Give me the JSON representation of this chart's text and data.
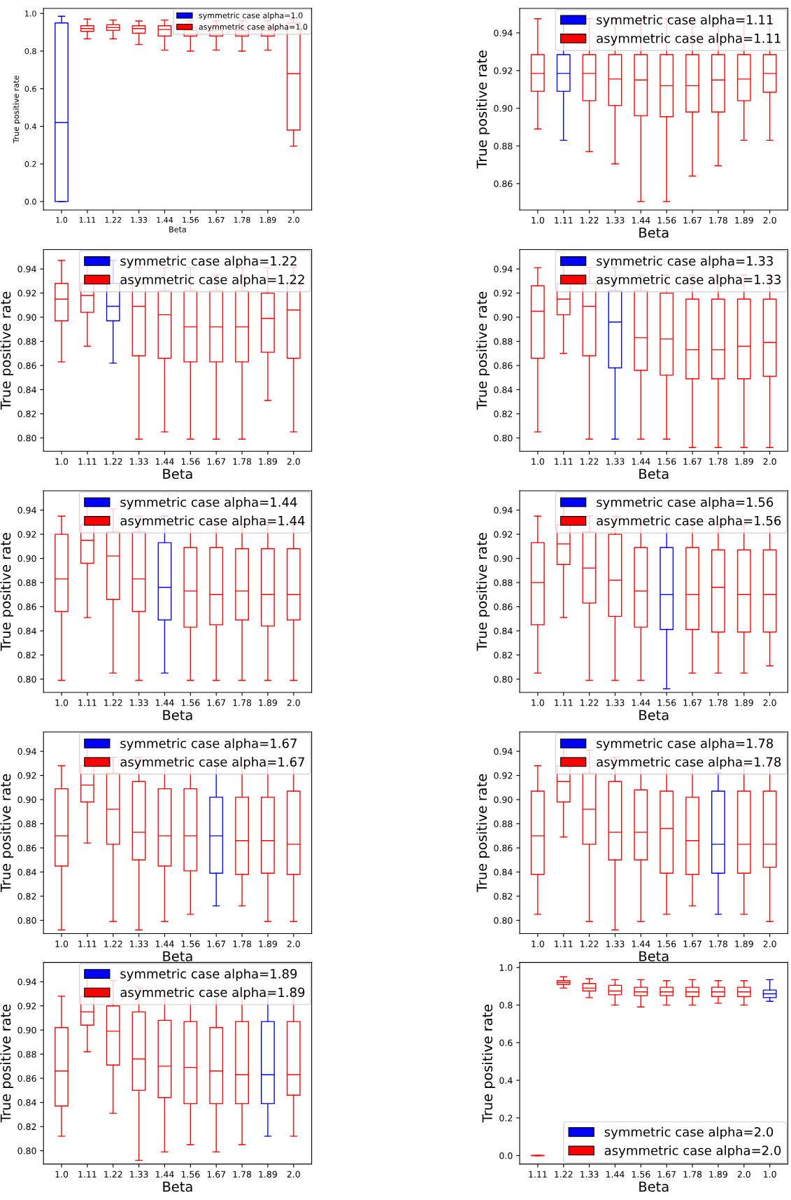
{
  "chart_data": [
    {
      "type": "box",
      "categories": [
        "1.0",
        "1.11",
        "1.22",
        "1.33",
        "1.44",
        "1.56",
        "1.67",
        "1.78",
        "1.89",
        "2.0"
      ],
      "xlabel": "Beta",
      "ylabel": "True positive rate",
      "ylim": [
        -0.045,
        1.027
      ],
      "yticks": [
        {
          "value": 0.0,
          "label": "0.0"
        },
        {
          "value": 0.2,
          "label": "0.2"
        },
        {
          "value": 0.4,
          "label": "0.4"
        },
        {
          "value": 0.6,
          "label": "0.6"
        },
        {
          "value": 0.8,
          "label": "0.8"
        },
        {
          "value": 1.0,
          "label": "1.0"
        }
      ],
      "legend": "top right",
      "series": [
        {
          "name": "symmetric case alpha=1.0",
          "color": "#0000ff",
          "boxes": [
            {
              "low": 0.0,
              "q1": 0.0,
              "median": 0.42,
              "q3": 0.95,
              "high": 0.985
            },
            null,
            null,
            null,
            null,
            null,
            null,
            null,
            null,
            null
          ]
        },
        {
          "name": "asymmetric case alpha=1.0",
          "color": "#ff0000",
          "boxes": [
            null,
            {
              "low": 0.865,
              "q1": 0.905,
              "median": 0.92,
              "q3": 0.935,
              "high": 0.97
            },
            {
              "low": 0.865,
              "q1": 0.91,
              "median": 0.925,
              "q3": 0.94,
              "high": 0.965
            },
            {
              "low": 0.835,
              "q1": 0.895,
              "median": 0.92,
              "q3": 0.935,
              "high": 0.96
            },
            {
              "low": 0.805,
              "q1": 0.88,
              "median": 0.915,
              "q3": 0.935,
              "high": 0.965
            },
            {
              "low": 0.8,
              "q1": 0.88,
              "median": 0.91,
              "q3": 0.925,
              "high": 0.96
            },
            {
              "low": 0.805,
              "q1": 0.88,
              "median": 0.91,
              "q3": 0.925,
              "high": 0.96
            },
            {
              "low": 0.8,
              "q1": 0.88,
              "median": 0.91,
              "q3": 0.925,
              "high": 0.96
            },
            {
              "low": 0.805,
              "q1": 0.88,
              "median": 0.91,
              "q3": 0.925,
              "high": 0.96
            },
            {
              "low": 0.295,
              "q1": 0.38,
              "median": 0.68,
              "q3": 0.95,
              "high": 0.97
            }
          ]
        }
      ]
    },
    {
      "type": "box",
      "categories": [
        "1.0",
        "1.11",
        "1.22",
        "1.33",
        "1.44",
        "1.56",
        "1.67",
        "1.78",
        "1.89",
        "2.0"
      ],
      "xlabel": "Beta",
      "ylabel": "True positive rate",
      "ylim": [
        0.846,
        0.953
      ],
      "yticks": [
        {
          "value": 0.86,
          "label": "0.86"
        },
        {
          "value": 0.88,
          "label": "0.88"
        },
        {
          "value": 0.9,
          "label": "0.90"
        },
        {
          "value": 0.92,
          "label": "0.92"
        },
        {
          "value": 0.94,
          "label": "0.94"
        }
      ],
      "legend": "top right",
      "series": [
        {
          "name": "symmetric case alpha=1.11",
          "color": "#0000ff",
          "boxes": [
            null,
            {
              "low": 0.883,
              "q1": 0.909,
              "median": 0.9185,
              "q3": 0.9285,
              "high": 0.9475
            },
            null,
            null,
            null,
            null,
            null,
            null,
            null,
            null
          ]
        },
        {
          "name": "asymmetric case alpha=1.11",
          "color": "#ff0000",
          "boxes": [
            {
              "low": 0.889,
              "q1": 0.909,
              "median": 0.9185,
              "q3": 0.9285,
              "high": 0.9475
            },
            null,
            {
              "low": 0.877,
              "q1": 0.904,
              "median": 0.9185,
              "q3": 0.9285,
              "high": 0.9475
            },
            {
              "low": 0.8705,
              "q1": 0.9015,
              "median": 0.9155,
              "q3": 0.9285,
              "high": 0.9475
            },
            {
              "low": 0.8505,
              "q1": 0.896,
              "median": 0.915,
              "q3": 0.9285,
              "high": 0.9475
            },
            {
              "low": 0.8505,
              "q1": 0.8955,
              "median": 0.912,
              "q3": 0.9285,
              "high": 0.9475
            },
            {
              "low": 0.864,
              "q1": 0.898,
              "median": 0.912,
              "q3": 0.9285,
              "high": 0.9475
            },
            {
              "low": 0.8695,
              "q1": 0.898,
              "median": 0.915,
              "q3": 0.9285,
              "high": 0.9475
            },
            {
              "low": 0.883,
              "q1": 0.904,
              "median": 0.9155,
              "q3": 0.9285,
              "high": 0.9475
            },
            {
              "low": 0.883,
              "q1": 0.9085,
              "median": 0.9185,
              "q3": 0.9285,
              "high": 0.9475
            }
          ]
        }
      ]
    },
    {
      "type": "box",
      "categories": [
        "1.0",
        "1.11",
        "1.22",
        "1.33",
        "1.44",
        "1.56",
        "1.67",
        "1.78",
        "1.89",
        "2.0"
      ],
      "xlabel": "Beta",
      "ylabel": "True positive rate",
      "ylim": [
        0.789,
        0.956
      ],
      "yticks": [
        {
          "value": 0.8,
          "label": "0.80"
        },
        {
          "value": 0.82,
          "label": "0.82"
        },
        {
          "value": 0.84,
          "label": "0.84"
        },
        {
          "value": 0.86,
          "label": "0.86"
        },
        {
          "value": 0.88,
          "label": "0.88"
        },
        {
          "value": 0.9,
          "label": "0.90"
        },
        {
          "value": 0.92,
          "label": "0.92"
        },
        {
          "value": 0.94,
          "label": "0.94"
        }
      ],
      "legend": "top right",
      "series": [
        {
          "name": "symmetric case alpha=1.22",
          "color": "#0000ff",
          "boxes": [
            null,
            null,
            {
              "low": 0.862,
              "q1": 0.897,
              "median": 0.909,
              "q3": 0.928,
              "high": 0.947
            },
            null,
            null,
            null,
            null,
            null,
            null,
            null
          ]
        },
        {
          "name": "asymmetric case alpha=1.22",
          "color": "#ff0000",
          "boxes": [
            {
              "low": 0.863,
              "q1": 0.897,
              "median": 0.915,
              "q3": 0.928,
              "high": 0.947
            },
            {
              "low": 0.876,
              "q1": 0.904,
              "median": 0.918,
              "q3": 0.928,
              "high": 0.947
            },
            null,
            {
              "low": 0.799,
              "q1": 0.868,
              "median": 0.909,
              "q3": 0.928,
              "high": 0.941
            },
            {
              "low": 0.805,
              "q1": 0.866,
              "median": 0.902,
              "q3": 0.922,
              "high": 0.941
            },
            {
              "low": 0.799,
              "q1": 0.863,
              "median": 0.892,
              "q3": 0.922,
              "high": 0.941
            },
            {
              "low": 0.799,
              "q1": 0.863,
              "median": 0.892,
              "q3": 0.922,
              "high": 0.935
            },
            {
              "low": 0.799,
              "q1": 0.863,
              "median": 0.892,
              "q3": 0.922,
              "high": 0.941
            },
            {
              "low": 0.831,
              "q1": 0.871,
              "median": 0.899,
              "q3": 0.92,
              "high": 0.941
            },
            {
              "low": 0.805,
              "q1": 0.866,
              "median": 0.906,
              "q3": 0.928,
              "high": 0.941
            }
          ]
        }
      ]
    },
    {
      "type": "box",
      "categories": [
        "1.0",
        "1.11",
        "1.22",
        "1.33",
        "1.44",
        "1.56",
        "1.67",
        "1.78",
        "1.89",
        "2.0"
      ],
      "xlabel": "Beta",
      "ylabel": "True positive rate",
      "ylim": [
        0.789,
        0.956
      ],
      "yticks": [
        {
          "value": 0.8,
          "label": "0.80"
        },
        {
          "value": 0.82,
          "label": "0.82"
        },
        {
          "value": 0.84,
          "label": "0.84"
        },
        {
          "value": 0.86,
          "label": "0.86"
        },
        {
          "value": 0.88,
          "label": "0.88"
        },
        {
          "value": 0.9,
          "label": "0.90"
        },
        {
          "value": 0.92,
          "label": "0.92"
        },
        {
          "value": 0.94,
          "label": "0.94"
        }
      ],
      "legend": "top right",
      "series": [
        {
          "name": "symmetric case alpha=1.33",
          "color": "#0000ff",
          "boxes": [
            null,
            null,
            null,
            {
              "low": 0.799,
              "q1": 0.858,
              "median": 0.896,
              "q3": 0.922,
              "high": 0.941
            },
            null,
            null,
            null,
            null,
            null,
            null
          ]
        },
        {
          "name": "asymmetric case alpha=1.33",
          "color": "#ff0000",
          "boxes": [
            {
              "low": 0.805,
              "q1": 0.866,
              "median": 0.905,
              "q3": 0.926,
              "high": 0.941
            },
            {
              "low": 0.87,
              "q1": 0.902,
              "median": 0.915,
              "q3": 0.928,
              "high": 0.947
            },
            {
              "low": 0.799,
              "q1": 0.868,
              "median": 0.909,
              "q3": 0.928,
              "high": 0.941
            },
            null,
            {
              "low": 0.799,
              "q1": 0.856,
              "median": 0.883,
              "q3": 0.922,
              "high": 0.935
            },
            {
              "low": 0.799,
              "q1": 0.852,
              "median": 0.882,
              "q3": 0.92,
              "high": 0.935
            },
            {
              "low": 0.792,
              "q1": 0.849,
              "median": 0.873,
              "q3": 0.915,
              "high": 0.935
            },
            {
              "low": 0.792,
              "q1": 0.849,
              "median": 0.873,
              "q3": 0.915,
              "high": 0.935
            },
            {
              "low": 0.792,
              "q1": 0.849,
              "median": 0.876,
              "q3": 0.915,
              "high": 0.935
            },
            {
              "low": 0.792,
              "q1": 0.851,
              "median": 0.879,
              "q3": 0.915,
              "high": 0.935
            }
          ]
        }
      ]
    },
    {
      "type": "box",
      "categories": [
        "1.0",
        "1.11",
        "1.22",
        "1.33",
        "1.44",
        "1.56",
        "1.67",
        "1.78",
        "1.89",
        "2.0"
      ],
      "xlabel": "Beta",
      "ylabel": "True positive rate",
      "ylim": [
        0.789,
        0.956
      ],
      "yticks": [
        {
          "value": 0.8,
          "label": "0.80"
        },
        {
          "value": 0.82,
          "label": "0.82"
        },
        {
          "value": 0.84,
          "label": "0.84"
        },
        {
          "value": 0.86,
          "label": "0.86"
        },
        {
          "value": 0.88,
          "label": "0.88"
        },
        {
          "value": 0.9,
          "label": "0.90"
        },
        {
          "value": 0.92,
          "label": "0.92"
        },
        {
          "value": 0.94,
          "label": "0.94"
        }
      ],
      "legend": "top right",
      "series": [
        {
          "name": "symmetric case alpha=1.44",
          "color": "#0000ff",
          "boxes": [
            null,
            null,
            null,
            null,
            {
              "low": 0.805,
              "q1": 0.849,
              "median": 0.876,
              "q3": 0.913,
              "high": 0.935
            },
            null,
            null,
            null,
            null,
            null
          ]
        },
        {
          "name": "asymmetric case alpha=1.44",
          "color": "#ff0000",
          "boxes": [
            {
              "low": 0.799,
              "q1": 0.856,
              "median": 0.883,
              "q3": 0.92,
              "high": 0.935
            },
            {
              "low": 0.851,
              "q1": 0.896,
              "median": 0.915,
              "q3": 0.928,
              "high": 0.947
            },
            {
              "low": 0.805,
              "q1": 0.866,
              "median": 0.902,
              "q3": 0.922,
              "high": 0.941
            },
            {
              "low": 0.799,
              "q1": 0.856,
              "median": 0.883,
              "q3": 0.922,
              "high": 0.935
            },
            null,
            {
              "low": 0.799,
              "q1": 0.843,
              "median": 0.873,
              "q3": 0.909,
              "high": 0.928
            },
            {
              "low": 0.799,
              "q1": 0.845,
              "median": 0.87,
              "q3": 0.909,
              "high": 0.928
            },
            {
              "low": 0.799,
              "q1": 0.849,
              "median": 0.873,
              "q3": 0.908,
              "high": 0.928
            },
            {
              "low": 0.799,
              "q1": 0.844,
              "median": 0.87,
              "q3": 0.908,
              "high": 0.928
            },
            {
              "low": 0.799,
              "q1": 0.849,
              "median": 0.87,
              "q3": 0.908,
              "high": 0.928
            }
          ]
        }
      ]
    },
    {
      "type": "box",
      "categories": [
        "1.0",
        "1.11",
        "1.22",
        "1.33",
        "1.44",
        "1.56",
        "1.67",
        "1.78",
        "1.89",
        "2.0"
      ],
      "xlabel": "Beta",
      "ylabel": "True positive rate",
      "ylim": [
        0.789,
        0.956
      ],
      "yticks": [
        {
          "value": 0.8,
          "label": "0.80"
        },
        {
          "value": 0.82,
          "label": "0.82"
        },
        {
          "value": 0.84,
          "label": "0.84"
        },
        {
          "value": 0.86,
          "label": "0.86"
        },
        {
          "value": 0.88,
          "label": "0.88"
        },
        {
          "value": 0.9,
          "label": "0.90"
        },
        {
          "value": 0.92,
          "label": "0.92"
        },
        {
          "value": 0.94,
          "label": "0.94"
        }
      ],
      "legend": "top right",
      "series": [
        {
          "name": "symmetric case alpha=1.56",
          "color": "#0000ff",
          "boxes": [
            null,
            null,
            null,
            null,
            null,
            {
              "low": 0.792,
              "q1": 0.841,
              "median": 0.87,
              "q3": 0.909,
              "high": 0.928
            },
            null,
            null,
            null,
            null
          ]
        },
        {
          "name": "asymmetric case alpha=1.56",
          "color": "#ff0000",
          "boxes": [
            {
              "low": 0.805,
              "q1": 0.845,
              "median": 0.88,
              "q3": 0.913,
              "high": 0.935
            },
            {
              "low": 0.851,
              "q1": 0.895,
              "median": 0.912,
              "q3": 0.928,
              "high": 0.947
            },
            {
              "low": 0.799,
              "q1": 0.863,
              "median": 0.892,
              "q3": 0.922,
              "high": 0.935
            },
            {
              "low": 0.799,
              "q1": 0.852,
              "median": 0.882,
              "q3": 0.92,
              "high": 0.935
            },
            {
              "low": 0.799,
              "q1": 0.843,
              "median": 0.873,
              "q3": 0.909,
              "high": 0.928
            },
            null,
            {
              "low": 0.805,
              "q1": 0.841,
              "median": 0.87,
              "q3": 0.909,
              "high": 0.928
            },
            {
              "low": 0.805,
              "q1": 0.839,
              "median": 0.876,
              "q3": 0.907,
              "high": 0.928
            },
            {
              "low": 0.805,
              "q1": 0.839,
              "median": 0.87,
              "q3": 0.907,
              "high": 0.928
            },
            {
              "low": 0.811,
              "q1": 0.839,
              "median": 0.87,
              "q3": 0.907,
              "high": 0.928
            }
          ]
        }
      ]
    },
    {
      "type": "box",
      "categories": [
        "1.0",
        "1.11",
        "1.22",
        "1.33",
        "1.44",
        "1.56",
        "1.67",
        "1.78",
        "1.89",
        "2.0"
      ],
      "xlabel": "Beta",
      "ylabel": "True positive rate",
      "ylim": [
        0.789,
        0.956
      ],
      "yticks": [
        {
          "value": 0.8,
          "label": "0.80"
        },
        {
          "value": 0.82,
          "label": "0.82"
        },
        {
          "value": 0.84,
          "label": "0.84"
        },
        {
          "value": 0.86,
          "label": "0.86"
        },
        {
          "value": 0.88,
          "label": "0.88"
        },
        {
          "value": 0.9,
          "label": "0.90"
        },
        {
          "value": 0.92,
          "label": "0.92"
        },
        {
          "value": 0.94,
          "label": "0.94"
        }
      ],
      "legend": "top right",
      "series": [
        {
          "name": "symmetric case alpha=1.67",
          "color": "#0000ff",
          "boxes": [
            null,
            null,
            null,
            null,
            null,
            null,
            {
              "low": 0.812,
              "q1": 0.839,
              "median": 0.87,
              "q3": 0.902,
              "high": 0.928
            },
            null,
            null,
            null
          ]
        },
        {
          "name": "asymmetric case alpha=1.67",
          "color": "#ff0000",
          "boxes": [
            {
              "low": 0.792,
              "q1": 0.845,
              "median": 0.87,
              "q3": 0.909,
              "high": 0.928
            },
            {
              "low": 0.864,
              "q1": 0.898,
              "median": 0.912,
              "q3": 0.928,
              "high": 0.947
            },
            {
              "low": 0.799,
              "q1": 0.863,
              "median": 0.892,
              "q3": 0.922,
              "high": 0.935
            },
            {
              "low": 0.792,
              "q1": 0.85,
              "median": 0.873,
              "q3": 0.915,
              "high": 0.935
            },
            {
              "low": 0.799,
              "q1": 0.845,
              "median": 0.87,
              "q3": 0.909,
              "high": 0.928
            },
            {
              "low": 0.805,
              "q1": 0.841,
              "median": 0.87,
              "q3": 0.909,
              "high": 0.928
            },
            null,
            {
              "low": 0.812,
              "q1": 0.838,
              "median": 0.866,
              "q3": 0.902,
              "high": 0.928
            },
            {
              "low": 0.799,
              "q1": 0.839,
              "median": 0.866,
              "q3": 0.902,
              "high": 0.928
            },
            {
              "low": 0.799,
              "q1": 0.838,
              "median": 0.863,
              "q3": 0.907,
              "high": 0.928
            }
          ]
        }
      ]
    },
    {
      "type": "box",
      "categories": [
        "1.0",
        "1.11",
        "1.22",
        "1.33",
        "1.44",
        "1.56",
        "1.67",
        "1.78",
        "1.89",
        "2.0"
      ],
      "xlabel": "Beta",
      "ylabel": "True positive rate",
      "ylim": [
        0.789,
        0.956
      ],
      "yticks": [
        {
          "value": 0.8,
          "label": "0.80"
        },
        {
          "value": 0.82,
          "label": "0.82"
        },
        {
          "value": 0.84,
          "label": "0.84"
        },
        {
          "value": 0.86,
          "label": "0.86"
        },
        {
          "value": 0.88,
          "label": "0.88"
        },
        {
          "value": 0.9,
          "label": "0.90"
        },
        {
          "value": 0.92,
          "label": "0.92"
        },
        {
          "value": 0.94,
          "label": "0.94"
        }
      ],
      "legend": "top right",
      "series": [
        {
          "name": "symmetric case alpha=1.78",
          "color": "#0000ff",
          "boxes": [
            null,
            null,
            null,
            null,
            null,
            null,
            null,
            {
              "low": 0.805,
              "q1": 0.839,
              "median": 0.863,
              "q3": 0.907,
              "high": 0.922
            },
            null,
            null
          ]
        },
        {
          "name": "asymmetric case alpha=1.78",
          "color": "#ff0000",
          "boxes": [
            {
              "low": 0.805,
              "q1": 0.838,
              "median": 0.87,
              "q3": 0.907,
              "high": 0.928
            },
            {
              "low": 0.869,
              "q1": 0.898,
              "median": 0.915,
              "q3": 0.928,
              "high": 0.947
            },
            {
              "low": 0.799,
              "q1": 0.863,
              "median": 0.892,
              "q3": 0.922,
              "high": 0.941
            },
            {
              "low": 0.792,
              "q1": 0.85,
              "median": 0.873,
              "q3": 0.915,
              "high": 0.935
            },
            {
              "low": 0.799,
              "q1": 0.85,
              "median": 0.873,
              "q3": 0.908,
              "high": 0.928
            },
            {
              "low": 0.805,
              "q1": 0.839,
              "median": 0.876,
              "q3": 0.907,
              "high": 0.928
            },
            {
              "low": 0.812,
              "q1": 0.838,
              "median": 0.866,
              "q3": 0.902,
              "high": 0.928
            },
            null,
            {
              "low": 0.805,
              "q1": 0.839,
              "median": 0.863,
              "q3": 0.907,
              "high": 0.928
            },
            {
              "low": 0.799,
              "q1": 0.844,
              "median": 0.863,
              "q3": 0.907,
              "high": 0.935
            }
          ]
        }
      ]
    },
    {
      "type": "box",
      "categories": [
        "1.0",
        "1.11",
        "1.22",
        "1.33",
        "1.44",
        "1.56",
        "1.67",
        "1.78",
        "1.89",
        "2.0"
      ],
      "xlabel": "Beta",
      "ylabel": "True positive rate",
      "ylim": [
        0.789,
        0.956
      ],
      "yticks": [
        {
          "value": 0.8,
          "label": "0.80"
        },
        {
          "value": 0.82,
          "label": "0.82"
        },
        {
          "value": 0.84,
          "label": "0.84"
        },
        {
          "value": 0.86,
          "label": "0.86"
        },
        {
          "value": 0.88,
          "label": "0.88"
        },
        {
          "value": 0.9,
          "label": "0.90"
        },
        {
          "value": 0.92,
          "label": "0.92"
        },
        {
          "value": 0.94,
          "label": "0.94"
        }
      ],
      "legend": "top right",
      "series": [
        {
          "name": "symmetric case alpha=1.89",
          "color": "#0000ff",
          "boxes": [
            null,
            null,
            null,
            null,
            null,
            null,
            null,
            null,
            {
              "low": 0.812,
              "q1": 0.839,
              "median": 0.863,
              "q3": 0.907,
              "high": 0.928
            },
            null
          ]
        },
        {
          "name": "asymmetric case alpha=1.89",
          "color": "#ff0000",
          "boxes": [
            {
              "low": 0.812,
              "q1": 0.837,
              "median": 0.866,
              "q3": 0.902,
              "high": 0.928
            },
            {
              "low": 0.882,
              "q1": 0.904,
              "median": 0.915,
              "q3": 0.928,
              "high": 0.947
            },
            {
              "low": 0.831,
              "q1": 0.871,
              "median": 0.899,
              "q3": 0.92,
              "high": 0.941
            },
            {
              "low": 0.792,
              "q1": 0.85,
              "median": 0.876,
              "q3": 0.915,
              "high": 0.935
            },
            {
              "low": 0.799,
              "q1": 0.844,
              "median": 0.87,
              "q3": 0.908,
              "high": 0.928
            },
            {
              "low": 0.805,
              "q1": 0.839,
              "median": 0.869,
              "q3": 0.907,
              "high": 0.928
            },
            {
              "low": 0.799,
              "q1": 0.839,
              "median": 0.866,
              "q3": 0.902,
              "high": 0.928
            },
            {
              "low": 0.805,
              "q1": 0.839,
              "median": 0.863,
              "q3": 0.907,
              "high": 0.928
            },
            null,
            {
              "low": 0.812,
              "q1": 0.846,
              "median": 0.863,
              "q3": 0.907,
              "high": 0.935
            }
          ]
        }
      ]
    },
    {
      "type": "box",
      "categories": [
        "1.11",
        "1.22",
        "1.33",
        "1.44",
        "1.56",
        "1.67",
        "1.78",
        "1.89",
        "2.0",
        "1.0"
      ],
      "xlabel": "Beta",
      "ylabel": "True positive rate",
      "ylim": [
        -0.045,
        1.027
      ],
      "yticks": [
        {
          "value": 0.0,
          "label": "0.0"
        },
        {
          "value": 0.2,
          "label": "0.2"
        },
        {
          "value": 0.4,
          "label": "0.4"
        },
        {
          "value": 0.6,
          "label": "0.6"
        },
        {
          "value": 0.8,
          "label": "0.8"
        },
        {
          "value": 1.0,
          "label": "1.0"
        }
      ],
      "legend": "bottom right",
      "series": [
        {
          "name": "symmetric case alpha=2.0",
          "color": "#0000ff",
          "boxes": [
            null,
            null,
            null,
            null,
            null,
            null,
            null,
            null,
            null,
            {
              "low": 0.82,
              "q1": 0.84,
              "median": 0.86,
              "q3": 0.88,
              "high": 0.935
            }
          ]
        },
        {
          "name": "asymmetric case alpha=2.0",
          "color": "#ff0000",
          "boxes": [
            {
              "low": 0.0,
              "q1": 0.0,
              "median": 0.0,
              "q3": 0.0,
              "high": 0.0
            },
            {
              "low": 0.89,
              "q1": 0.91,
              "median": 0.92,
              "q3": 0.93,
              "high": 0.95
            },
            {
              "low": 0.84,
              "q1": 0.875,
              "median": 0.89,
              "q3": 0.915,
              "high": 0.94
            },
            {
              "low": 0.8,
              "q1": 0.855,
              "median": 0.875,
              "q3": 0.905,
              "high": 0.935
            },
            {
              "low": 0.79,
              "q1": 0.85,
              "median": 0.87,
              "q3": 0.895,
              "high": 0.935
            },
            {
              "low": 0.8,
              "q1": 0.85,
              "median": 0.87,
              "q3": 0.895,
              "high": 0.93
            },
            {
              "low": 0.8,
              "q1": 0.845,
              "median": 0.87,
              "q3": 0.895,
              "high": 0.935
            },
            {
              "low": 0.81,
              "q1": 0.845,
              "median": 0.87,
              "q3": 0.895,
              "high": 0.93
            },
            {
              "low": 0.8,
              "q1": 0.845,
              "median": 0.87,
              "q3": 0.895,
              "high": 0.93
            },
            null
          ]
        }
      ]
    }
  ]
}
